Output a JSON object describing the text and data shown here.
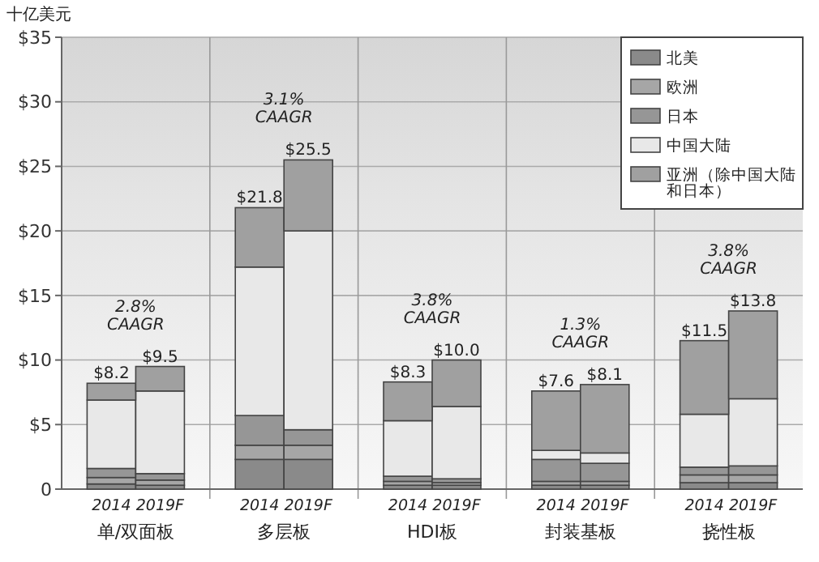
{
  "chart_data": {
    "type": "bar",
    "stacked": true,
    "ylabel": "十亿美元",
    "categories": [
      "2014",
      "2019F",
      "2014",
      "2019F",
      "2014",
      "2019F",
      "2014",
      "2019F",
      "2014",
      "2019F"
    ],
    "series": [
      {
        "name": "北美",
        "color": "#8a8a8a",
        "values": [
          0.4,
          0.3,
          2.3,
          2.3,
          0.3,
          0.3,
          0.3,
          0.3,
          0.5,
          0.5
        ]
      },
      {
        "name": "欧洲",
        "color": "#a6a6a6",
        "values": [
          0.5,
          0.4,
          1.1,
          1.1,
          0.3,
          0.2,
          0.3,
          0.3,
          0.6,
          0.6
        ]
      },
      {
        "name": "日本",
        "color": "#969696",
        "values": [
          0.7,
          0.5,
          2.3,
          1.2,
          0.4,
          0.3,
          1.7,
          1.4,
          0.6,
          0.7
        ]
      },
      {
        "name": "中国大陆",
        "color": "#e8e8e8",
        "values": [
          5.3,
          6.4,
          11.5,
          15.4,
          4.3,
          5.6,
          0.7,
          0.8,
          4.1,
          5.2
        ]
      },
      {
        "name": "亚洲（除中国大陆和日本）",
        "color": "#a0a0a0",
        "values": [
          1.3,
          1.9,
          4.6,
          5.5,
          3.0,
          3.6,
          4.6,
          5.3,
          5.7,
          6.8
        ]
      }
    ],
    "totals": [
      "$8.2",
      "$9.5",
      "$21.8",
      "$25.5",
      "$8.3",
      "$10.0",
      "$7.6",
      "$8.1",
      "$11.5",
      "$13.8"
    ],
    "annotations": [
      "单/双面板",
      "多层板",
      "HDI板",
      "封装基板",
      "挠性板",
      "2.8% CAAGR",
      "3.1% CAAGR",
      "3.8% CAAGR",
      "1.3% CAAGR",
      "3.8% CAAGR"
    ],
    "ylim": [
      0,
      35
    ],
    "yticks": [
      0,
      {
        "value": 5,
        "label": "$5"
      },
      {
        "value": 10,
        "label": "$10"
      },
      {
        "value": 15,
        "label": "$15"
      },
      {
        "value": 20,
        "label": "$20"
      },
      {
        "value": 25,
        "label": "$25"
      },
      {
        "value": 30,
        "label": "$30"
      },
      {
        "value": 35,
        "label": "$35"
      }
    ],
    "grid": true,
    "legend": "top right"
  }
}
